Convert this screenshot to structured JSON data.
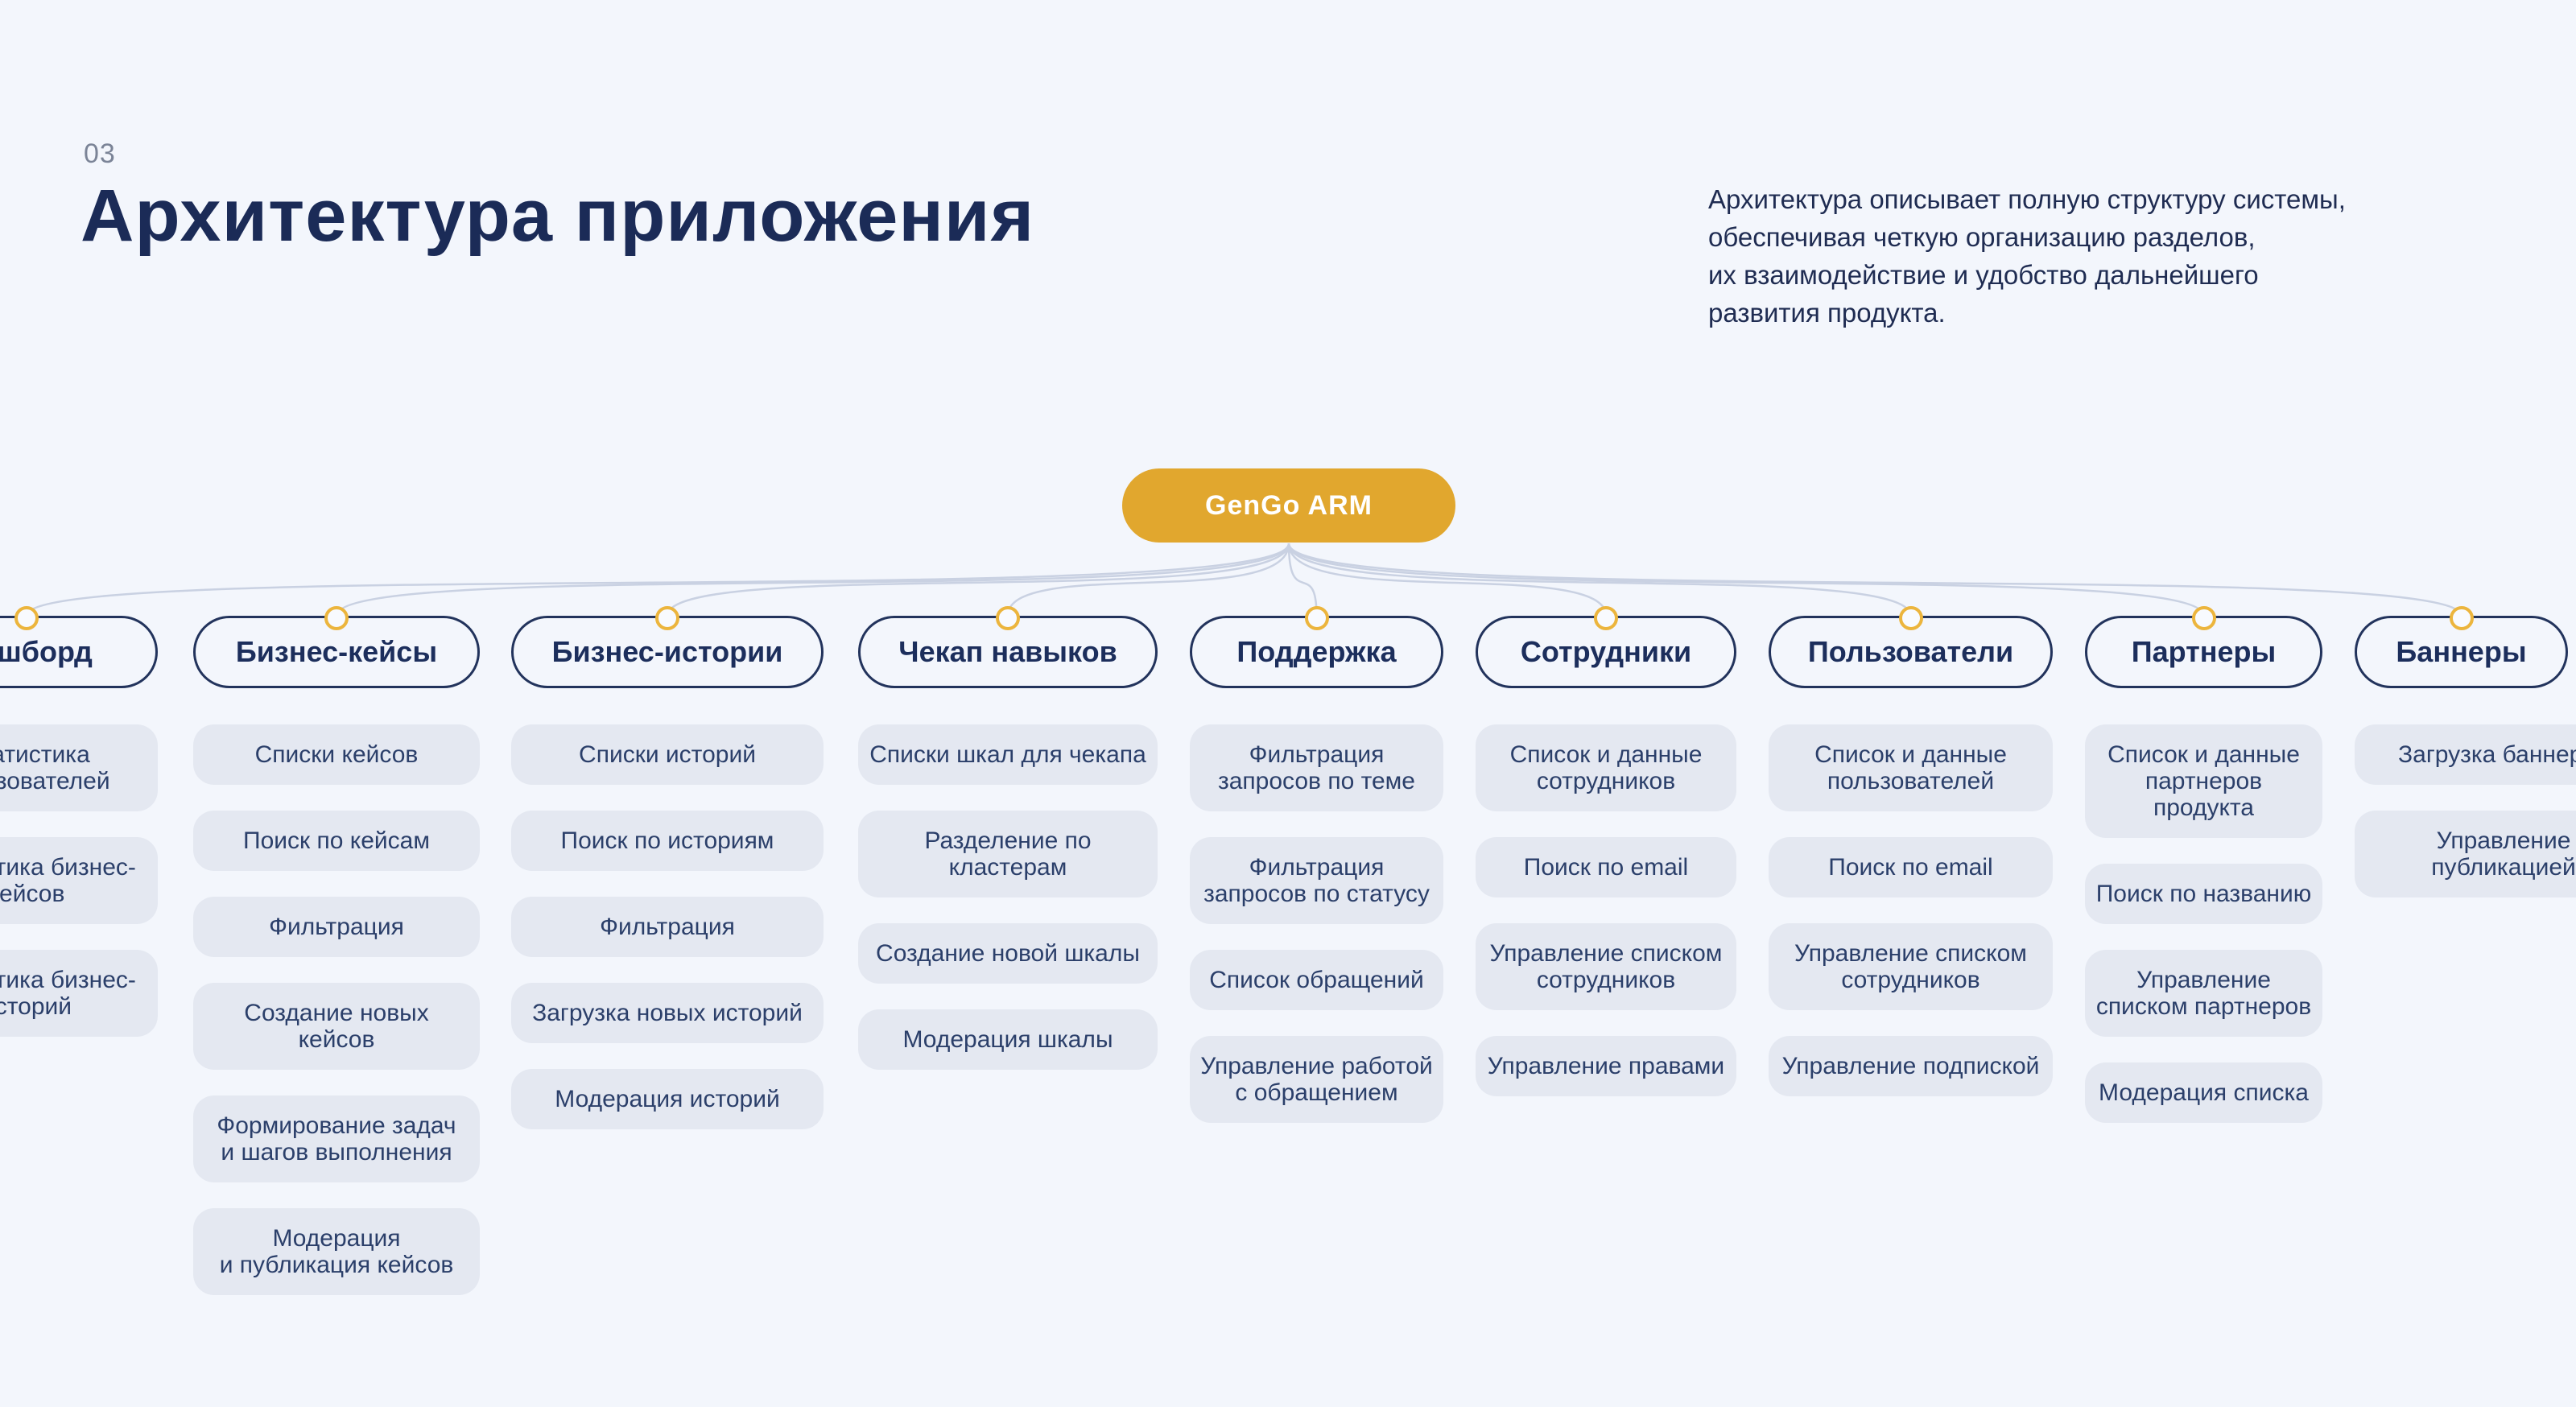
{
  "slide": {
    "section_number": "03",
    "title": "Архитектура приложения",
    "description": "Архитектура описывает полную структуру системы,\nобеспечивая четкую организацию разделов,\nих взаимодействие и удобство дальнейшего\nразвития продукта."
  },
  "diagram": {
    "root": {
      "label": "GenGo ARM"
    },
    "columns": [
      {
        "title": "Дашборд",
        "items": [
          "Статистика\nпользователей",
          "Статистика бизнес-\nкейсов",
          "Статистика бизнес-\nисторий"
        ]
      },
      {
        "title": "Бизнес-кейсы",
        "items": [
          "Списки кейсов",
          "Поиск по кейсам",
          "Фильтрация",
          "Создание новых кейсов",
          "Формирование задач\nи шагов выполнения",
          "Модерация\nи публикация кейсов"
        ]
      },
      {
        "title": "Бизнес-истории",
        "items": [
          "Списки историй",
          "Поиск по историям",
          "Фильтрация",
          "Загрузка новых историй",
          "Модерация историй"
        ]
      },
      {
        "title": "Чекап навыков",
        "items": [
          "Списки шкал для чекапа",
          "Разделение по кластерам",
          "Создание новой шкалы",
          "Модерация шкалы"
        ]
      },
      {
        "title": "Поддержка",
        "items": [
          "Фильтрация\nзапросов по теме",
          "Фильтрация\nзапросов по статусу",
          "Список обращений",
          "Управление работой\nс обращением"
        ]
      },
      {
        "title": "Сотрудники",
        "items": [
          "Список и данные\nсотрудников",
          "Поиск по email",
          "Управление списком\nсотрудников",
          "Управление правами"
        ]
      },
      {
        "title": "Пользователи",
        "items": [
          "Список и данные\nпользователей",
          "Поиск по email",
          "Управление списком\nсотрудников",
          "Управление подпиской"
        ]
      },
      {
        "title": "Партнеры",
        "items": [
          "Список и данные\nпартнеров\nпродукта",
          "Поиск по названию",
          "Управление\nсписком партнеров",
          "Модерация списка"
        ]
      },
      {
        "title": "Баннеры",
        "items": [
          "Загрузка баннеров",
          "Управление\nпубликацией"
        ]
      }
    ]
  },
  "colors": {
    "background": "#F3F6FC",
    "accent_gold": "#E1A72E",
    "dot_border_gold": "#ECB53D",
    "navy_text": "#1B2B57",
    "item_background": "#E4E8F1",
    "item_text": "#2B3F6A",
    "connector_line": "#C9D1E2",
    "section_number_gray": "#7B8497"
  }
}
